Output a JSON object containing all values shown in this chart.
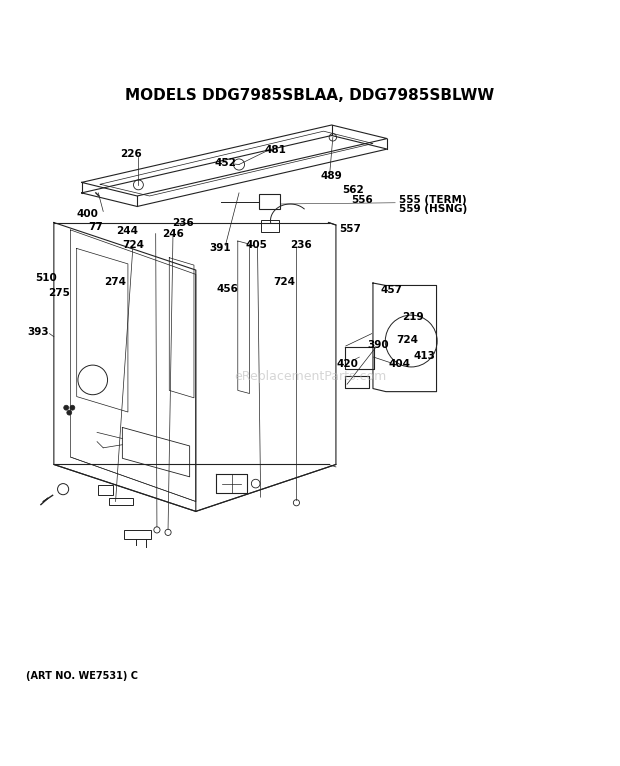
{
  "title": "MODELS DDG7985SBLAA, DDG7985SBLWW",
  "footer": "(ART NO. WE7531) C",
  "watermark": "eReplacementParts.com",
  "bg_color": "#ffffff",
  "title_fontsize": 11,
  "label_fontsize": 7.5
}
